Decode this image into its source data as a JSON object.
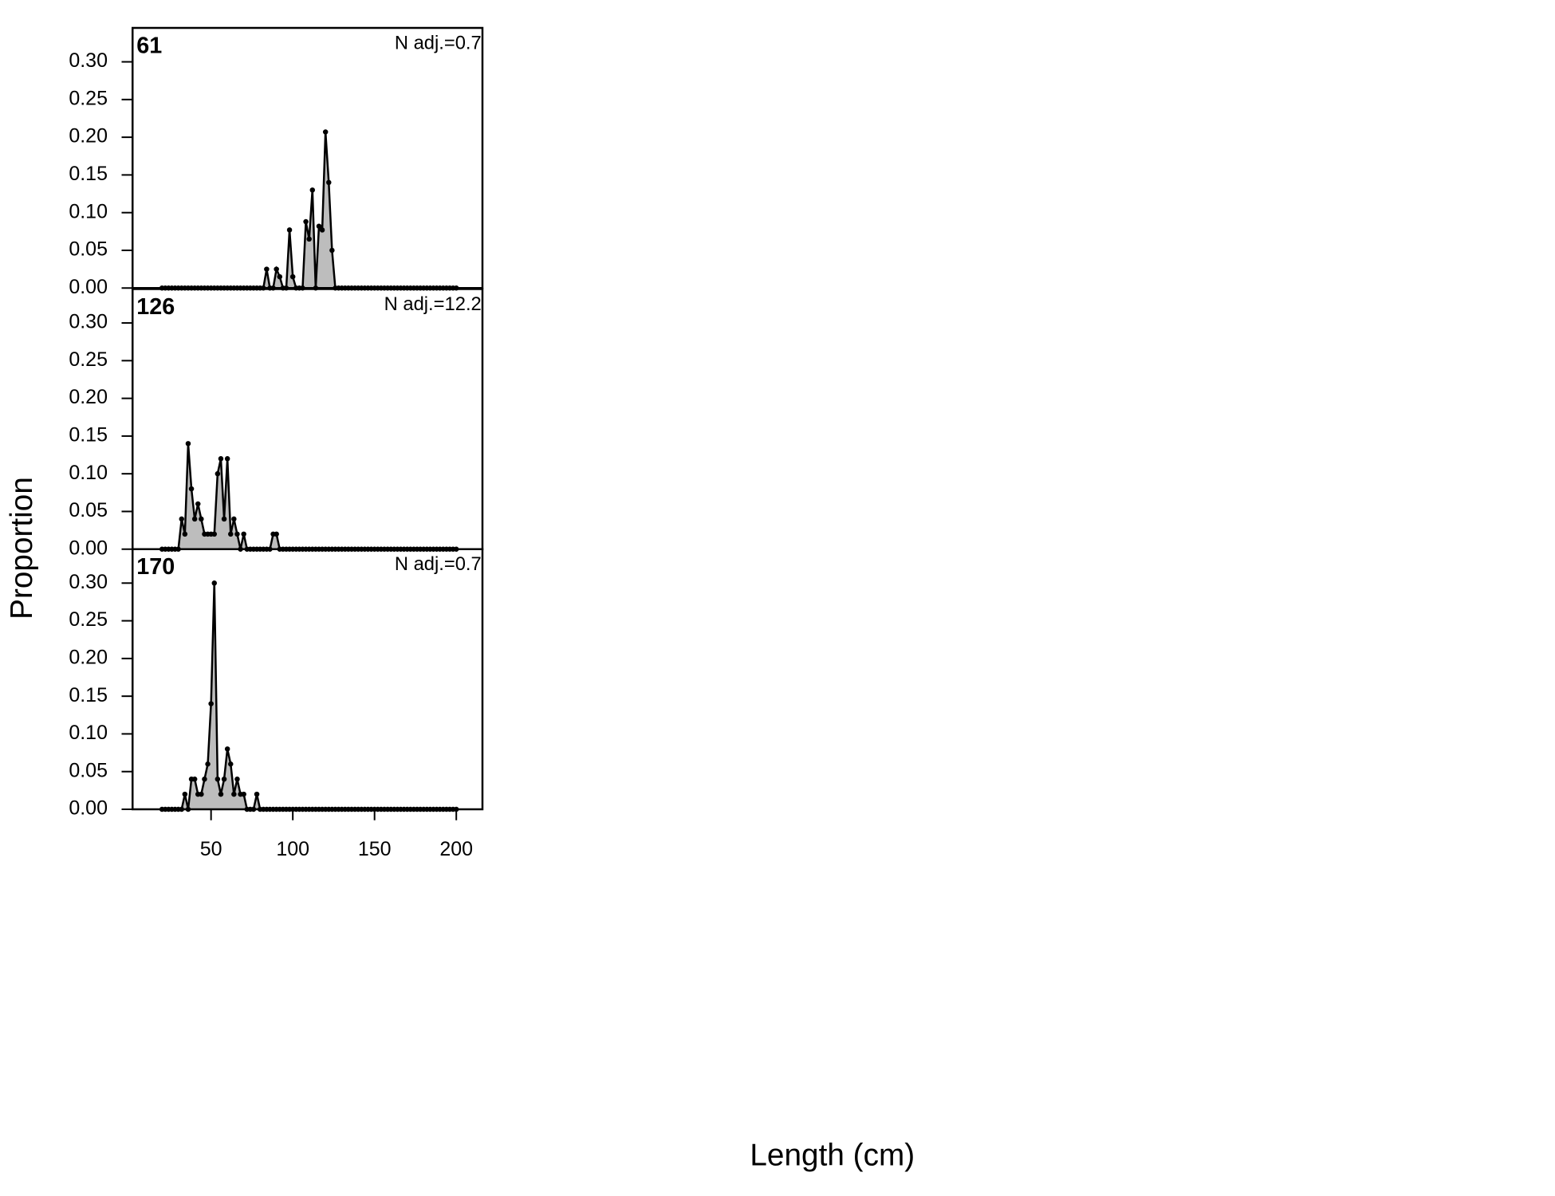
{
  "shared_labels": {
    "x": "Length (cm)",
    "y": "Proportion"
  },
  "chart_data": [
    {
      "type": "area",
      "title": "61",
      "annotation": "N adj.=0.7",
      "color": "#bdbdbd",
      "line_color": "#000000",
      "xlim": [
        2,
        216
      ],
      "ylim": [
        0,
        0.345
      ],
      "yticks": [
        {
          "value": 0,
          "label": "0.00"
        },
        0.05,
        {
          "value": 0.1,
          "label": "0.10"
        },
        0.15,
        {
          "value": 0.2,
          "label": "0.20"
        },
        0.25,
        {
          "value": 0.3,
          "label": "0.30"
        }
      ],
      "x": [
        20,
        22,
        24,
        26,
        28,
        30,
        32,
        34,
        36,
        38,
        40,
        42,
        44,
        46,
        48,
        50,
        52,
        54,
        56,
        58,
        60,
        62,
        64,
        66,
        68,
        70,
        72,
        74,
        76,
        78,
        80,
        82,
        84,
        86,
        88,
        90,
        92,
        94,
        96,
        98,
        100,
        102,
        104,
        106,
        108,
        110,
        112,
        114,
        116,
        118,
        120,
        122,
        124,
        126,
        128,
        130,
        132,
        134,
        136,
        138,
        140,
        142,
        144,
        146,
        148,
        150,
        152,
        154,
        156,
        158,
        160,
        162,
        164,
        166,
        168,
        170,
        172,
        174,
        176,
        178,
        180,
        182,
        184,
        186,
        188,
        190,
        192,
        194,
        196,
        198,
        200
      ],
      "values": [
        0,
        0,
        0,
        0,
        0,
        0,
        0,
        0,
        0,
        0,
        0,
        0,
        0,
        0,
        0,
        0,
        0,
        0,
        0,
        0,
        0,
        0,
        0,
        0,
        0,
        0,
        0,
        0,
        0,
        0,
        0,
        0,
        0.025,
        0,
        0,
        0.025,
        0.015,
        0,
        0,
        0.077,
        0.015,
        0,
        0,
        0,
        0.088,
        0.065,
        0.13,
        0,
        0.082,
        0.077,
        0.207,
        0.14,
        0.05,
        0,
        0,
        0,
        0,
        0,
        0,
        0,
        0,
        0,
        0,
        0,
        0,
        0,
        0,
        0,
        0,
        0,
        0,
        0,
        0,
        0,
        0,
        0,
        0,
        0,
        0,
        0,
        0,
        0,
        0,
        0,
        0,
        0,
        0,
        0,
        0,
        0,
        0
      ]
    },
    {
      "type": "area",
      "title": "126",
      "annotation": "N adj.=12.2",
      "color": "#bdbdbd",
      "line_color": "#000000",
      "xlim": [
        2,
        216
      ],
      "ylim": [
        0,
        0.345
      ],
      "yticks": [
        {
          "value": 0,
          "label": "0.00"
        },
        0.05,
        {
          "value": 0.1,
          "label": "0.10"
        },
        0.15,
        {
          "value": 0.2,
          "label": "0.20"
        },
        0.25,
        {
          "value": 0.3,
          "label": "0.30"
        }
      ],
      "x": [
        20,
        22,
        24,
        26,
        28,
        30,
        32,
        34,
        36,
        38,
        40,
        42,
        44,
        46,
        48,
        50,
        52,
        54,
        56,
        58,
        60,
        62,
        64,
        66,
        68,
        70,
        72,
        74,
        76,
        78,
        80,
        82,
        84,
        86,
        88,
        90,
        92,
        94,
        96,
        98,
        100,
        102,
        104,
        106,
        108,
        110,
        112,
        114,
        116,
        118,
        120,
        122,
        124,
        126,
        128,
        130,
        132,
        134,
        136,
        138,
        140,
        142,
        144,
        146,
        148,
        150,
        152,
        154,
        156,
        158,
        160,
        162,
        164,
        166,
        168,
        170,
        172,
        174,
        176,
        178,
        180,
        182,
        184,
        186,
        188,
        190,
        192,
        194,
        196,
        198,
        200
      ],
      "values": [
        0,
        0,
        0,
        0,
        0,
        0,
        0.04,
        0.02,
        0.14,
        0.08,
        0.04,
        0.06,
        0.04,
        0.02,
        0.02,
        0.02,
        0.02,
        0.1,
        0.12,
        0.04,
        0.12,
        0.02,
        0.04,
        0.02,
        0,
        0.02,
        0,
        0,
        0,
        0,
        0,
        0,
        0,
        0,
        0.02,
        0.02,
        0,
        0,
        0,
        0,
        0,
        0,
        0,
        0,
        0,
        0,
        0,
        0,
        0,
        0,
        0,
        0,
        0,
        0,
        0,
        0,
        0,
        0,
        0,
        0,
        0,
        0,
        0,
        0,
        0,
        0,
        0,
        0,
        0,
        0,
        0,
        0,
        0,
        0,
        0,
        0,
        0,
        0,
        0,
        0,
        0,
        0,
        0,
        0,
        0,
        0,
        0,
        0,
        0,
        0,
        0
      ]
    },
    {
      "type": "area",
      "title": "170",
      "annotation": "N adj.=0.7",
      "color": "#bdbdbd",
      "line_color": "#000000",
      "xlim": [
        2,
        216
      ],
      "ylim": [
        0,
        0.345
      ],
      "yticks": [
        {
          "value": 0,
          "label": "0.00"
        },
        0.05,
        {
          "value": 0.1,
          "label": "0.10"
        },
        0.15,
        {
          "value": 0.2,
          "label": "0.20"
        },
        0.25,
        {
          "value": 0.3,
          "label": "0.30"
        }
      ],
      "xticks": [
        50,
        100,
        150,
        200
      ],
      "x": [
        20,
        22,
        24,
        26,
        28,
        30,
        32,
        34,
        36,
        38,
        40,
        42,
        44,
        46,
        48,
        50,
        52,
        54,
        56,
        58,
        60,
        62,
        64,
        66,
        68,
        70,
        72,
        74,
        76,
        78,
        80,
        82,
        84,
        86,
        88,
        90,
        92,
        94,
        96,
        98,
        100,
        102,
        104,
        106,
        108,
        110,
        112,
        114,
        116,
        118,
        120,
        122,
        124,
        126,
        128,
        130,
        132,
        134,
        136,
        138,
        140,
        142,
        144,
        146,
        148,
        150,
        152,
        154,
        156,
        158,
        160,
        162,
        164,
        166,
        168,
        170,
        172,
        174,
        176,
        178,
        180,
        182,
        184,
        186,
        188,
        190,
        192,
        194,
        196,
        198,
        200
      ],
      "values": [
        0,
        0,
        0,
        0,
        0,
        0,
        0,
        0.02,
        0,
        0.04,
        0.04,
        0.02,
        0.02,
        0.04,
        0.06,
        0.14,
        0.3,
        0.04,
        0.02,
        0.04,
        0.08,
        0.06,
        0.02,
        0.04,
        0.02,
        0.02,
        0,
        0,
        0,
        0.02,
        0,
        0,
        0,
        0,
        0,
        0,
        0,
        0,
        0,
        0,
        0,
        0,
        0,
        0,
        0,
        0,
        0,
        0,
        0,
        0,
        0,
        0,
        0,
        0,
        0,
        0,
        0,
        0,
        0,
        0,
        0,
        0,
        0,
        0,
        0,
        0,
        0,
        0,
        0,
        0,
        0,
        0,
        0,
        0,
        0,
        0,
        0,
        0,
        0,
        0,
        0,
        0,
        0,
        0,
        0,
        0,
        0,
        0,
        0,
        0,
        0
      ]
    }
  ]
}
